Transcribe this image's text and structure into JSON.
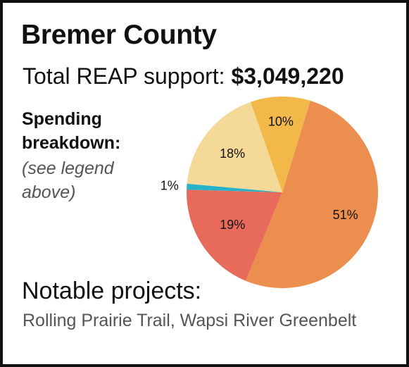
{
  "header": {
    "title": "Bremer County",
    "support_label": "Total REAP support:",
    "support_amount": "$3,049,220"
  },
  "breakdown": {
    "title": "Spending breakdown:",
    "note": "(see legend above)"
  },
  "notable": {
    "title": "Notable projects:",
    "text": "Rolling Prairie Trail, Wapsi River Greenbelt"
  },
  "chart_data": {
    "type": "pie",
    "slices": [
      {
        "label": "51%",
        "value": 51,
        "color": "#EC8F4E"
      },
      {
        "label": "19%",
        "value": 19,
        "color": "#E86A5A"
      },
      {
        "label": "1%",
        "value": 1,
        "color": "#26B3C7"
      },
      {
        "label": "18%",
        "value": 18,
        "color": "#F5D998"
      },
      {
        "label": "10%",
        "value": 10,
        "color": "#F2B84A"
      }
    ]
  }
}
